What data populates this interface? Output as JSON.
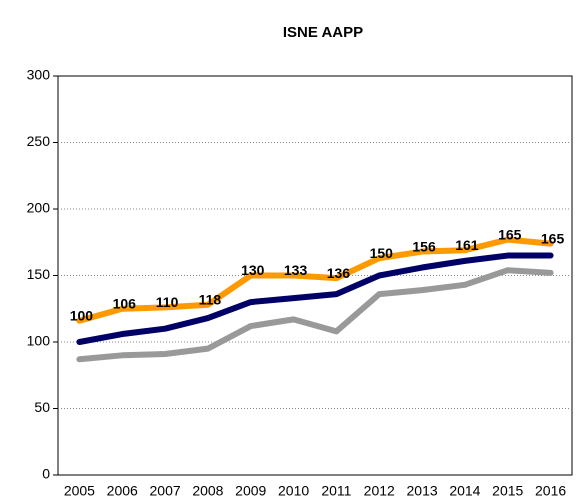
{
  "chart_data": {
    "type": "line",
    "title": "ISNE AAPP",
    "categories": [
      "2005",
      "2006",
      "2007",
      "2008",
      "2009",
      "2010",
      "2011",
      "2012",
      "2013",
      "2014",
      "2015",
      "2016"
    ],
    "series": [
      {
        "color": "#000066",
        "values": [
          100,
          106,
          110,
          118,
          130,
          133,
          136,
          150,
          156,
          161,
          165,
          165
        ]
      },
      {
        "color": "#ff9900",
        "values": [
          116,
          125,
          126,
          128,
          150,
          150,
          148,
          163,
          168,
          169,
          177,
          174
        ]
      },
      {
        "color": "#999999",
        "values": [
          87,
          90,
          91,
          95,
          112,
          117,
          108,
          136,
          139,
          143,
          154,
          152
        ]
      }
    ],
    "data_labels_series": 0,
    "ylim": [
      0,
      300
    ],
    "yticks": [
      0,
      50,
      100,
      150,
      200,
      250,
      300
    ],
    "grid": true
  }
}
